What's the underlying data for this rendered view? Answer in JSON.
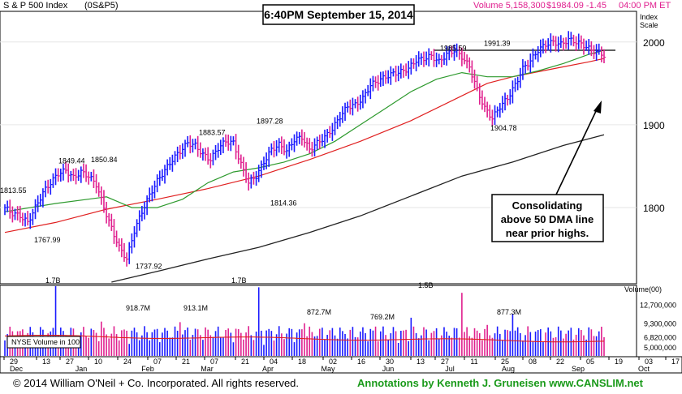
{
  "header": {
    "index_name": "S & P 500 Index",
    "symbol": "(0S&P5)",
    "volume_text": "Volume 5,158,300",
    "price_text": "$1984.09 -1.45",
    "time_text": "04:00 PM ET"
  },
  "timestamp_box": "6:40PM September 15, 2014",
  "annotation_box": [
    "Consolidating",
    "above 50 DMA line",
    "near prior highs."
  ],
  "footer": {
    "copyright": "© 2014 William O'Neil + Co. Incorporated. All rights reserved.",
    "annotations": "Annotations by Kenneth J. Gruneisen www.CANSLIM.net"
  },
  "colors": {
    "up_bar": "#1a1aff",
    "down_bar": "#e0208f",
    "ma50": "#2e9a2e",
    "ma_red": "#e02020",
    "ma200": "#222222",
    "header_pink": "#e0208f",
    "footer_green": "#1a9a1a",
    "volume_ma": "#e02020"
  },
  "chart_data": {
    "type": "ohlc",
    "title": "S & P 500 Index",
    "price_axis": {
      "label": "Index Scale",
      "ticks": [
        1800,
        1900,
        2000
      ],
      "tick_labels": [
        "1800",
        "1900",
        "2000"
      ],
      "range": [
        1710,
        2035
      ]
    },
    "volume_axis": {
      "label": "Volume(00)",
      "ticks": [
        5000000,
        6820000,
        9300000,
        12700000
      ],
      "tick_labels": [
        "5,000,000",
        "6,820,000",
        "9,300,000",
        "12,700,000"
      ],
      "range": [
        3400000,
        16000000
      ],
      "legend": "NYSE Volume in 100"
    },
    "x_axis": {
      "date_labels": [
        "29",
        "13",
        "27",
        "10",
        "24",
        "07",
        "21",
        "07",
        "21",
        "04",
        "18",
        "02",
        "16",
        "30",
        "13",
        "27",
        "11",
        "25",
        "08",
        "22",
        "05",
        "19",
        "03",
        "17"
      ],
      "month_labels": [
        "Dec",
        "Jan",
        "Feb",
        "Mar",
        "Apr",
        "May",
        "Jun",
        "Jul",
        "Aug",
        "Sep",
        "Oct"
      ]
    },
    "price_annotations": [
      {
        "text": "1813.55",
        "price": 1813.55
      },
      {
        "text": "1767.99",
        "price": 1767.99
      },
      {
        "text": "1849.44",
        "price": 1849.44
      },
      {
        "text": "1850.84",
        "price": 1850.84
      },
      {
        "text": "1737.92",
        "price": 1737.92
      },
      {
        "text": "1883.57",
        "price": 1883.57
      },
      {
        "text": "1897.28",
        "price": 1897.28
      },
      {
        "text": "1814.36",
        "price": 1814.36
      },
      {
        "text": "1985.59",
        "price": 1985.59
      },
      {
        "text": "1991.39",
        "price": 1991.39
      },
      {
        "text": "1904.78",
        "price": 1904.78
      }
    ],
    "volume_annotations": [
      {
        "text": "1.7B"
      },
      {
        "text": "918.7M"
      },
      {
        "text": "913.1M"
      },
      {
        "text": "1.7B"
      },
      {
        "text": "872.7M"
      },
      {
        "text": "769.2M"
      },
      {
        "text": "1.5B"
      },
      {
        "text": "877.3M"
      }
    ],
    "resistance_level": 1990,
    "price_path": [
      [
        0,
        1800
      ],
      [
        3,
        1793
      ],
      [
        6,
        1790
      ],
      [
        9,
        1782
      ],
      [
        12,
        1800
      ],
      [
        15,
        1818
      ],
      [
        18,
        1830
      ],
      [
        21,
        1841
      ],
      [
        24,
        1845
      ],
      [
        27,
        1836
      ],
      [
        30,
        1843
      ],
      [
        33,
        1838
      ],
      [
        36,
        1828
      ],
      [
        39,
        1800
      ],
      [
        42,
        1775
      ],
      [
        45,
        1752
      ],
      [
        48,
        1738
      ],
      [
        51,
        1772
      ],
      [
        54,
        1795
      ],
      [
        57,
        1815
      ],
      [
        60,
        1832
      ],
      [
        63,
        1845
      ],
      [
        66,
        1858
      ],
      [
        69,
        1868
      ],
      [
        72,
        1878
      ],
      [
        75,
        1875
      ],
      [
        78,
        1864
      ],
      [
        81,
        1858
      ],
      [
        84,
        1872
      ],
      [
        87,
        1880
      ],
      [
        90,
        1878
      ],
      [
        93,
        1852
      ],
      [
        96,
        1830
      ],
      [
        99,
        1838
      ],
      [
        102,
        1855
      ],
      [
        105,
        1870
      ],
      [
        108,
        1876
      ],
      [
        111,
        1868
      ],
      [
        114,
        1882
      ],
      [
        117,
        1885
      ],
      [
        120,
        1870
      ],
      [
        123,
        1878
      ],
      [
        126,
        1885
      ],
      [
        129,
        1895
      ],
      [
        132,
        1910
      ],
      [
        135,
        1922
      ],
      [
        138,
        1924
      ],
      [
        141,
        1932
      ],
      [
        144,
        1948
      ],
      [
        147,
        1953
      ],
      [
        150,
        1958
      ],
      [
        153,
        1962
      ],
      [
        156,
        1964
      ],
      [
        159,
        1968
      ],
      [
        162,
        1978
      ],
      [
        165,
        1980
      ],
      [
        168,
        1983
      ],
      [
        171,
        1976
      ],
      [
        174,
        1985
      ],
      [
        177,
        1990
      ],
      [
        180,
        1982
      ],
      [
        183,
        1970
      ],
      [
        186,
        1942
      ],
      [
        189,
        1920
      ],
      [
        192,
        1908
      ],
      [
        195,
        1922
      ],
      [
        198,
        1932
      ],
      [
        201,
        1948
      ],
      [
        204,
        1968
      ],
      [
        207,
        1977
      ],
      [
        210,
        1990
      ],
      [
        213,
        1997
      ],
      [
        216,
        2000
      ],
      [
        219,
        1997
      ],
      [
        222,
        2003
      ],
      [
        225,
        2000
      ],
      [
        228,
        1996
      ],
      [
        231,
        1990
      ],
      [
        234,
        1987
      ],
      [
        236,
        1984
      ]
    ],
    "ma50_path": [
      [
        0,
        1795
      ],
      [
        20,
        1805
      ],
      [
        40,
        1813
      ],
      [
        50,
        1800
      ],
      [
        60,
        1800
      ],
      [
        70,
        1810
      ],
      [
        80,
        1830
      ],
      [
        90,
        1843
      ],
      [
        100,
        1848
      ],
      [
        110,
        1855
      ],
      [
        120,
        1865
      ],
      [
        130,
        1880
      ],
      [
        140,
        1900
      ],
      [
        150,
        1920
      ],
      [
        160,
        1940
      ],
      [
        170,
        1955
      ],
      [
        180,
        1963
      ],
      [
        190,
        1958
      ],
      [
        200,
        1958
      ],
      [
        210,
        1965
      ],
      [
        220,
        1974
      ],
      [
        230,
        1985
      ],
      [
        236,
        1990
      ]
    ],
    "ma_red_path": [
      [
        0,
        1770
      ],
      [
        20,
        1782
      ],
      [
        40,
        1798
      ],
      [
        60,
        1810
      ],
      [
        80,
        1823
      ],
      [
        100,
        1838
      ],
      [
        120,
        1858
      ],
      [
        140,
        1880
      ],
      [
        160,
        1905
      ],
      [
        180,
        1935
      ],
      [
        190,
        1950
      ],
      [
        200,
        1958
      ],
      [
        210,
        1964
      ],
      [
        220,
        1970
      ],
      [
        230,
        1976
      ],
      [
        236,
        1980
      ]
    ],
    "ma200_path": [
      [
        42,
        1710
      ],
      [
        60,
        1723
      ],
      [
        80,
        1738
      ],
      [
        100,
        1752
      ],
      [
        120,
        1770
      ],
      [
        140,
        1790
      ],
      [
        160,
        1814
      ],
      [
        180,
        1838
      ],
      [
        200,
        1855
      ],
      [
        220,
        1875
      ],
      [
        236,
        1888
      ]
    ]
  }
}
